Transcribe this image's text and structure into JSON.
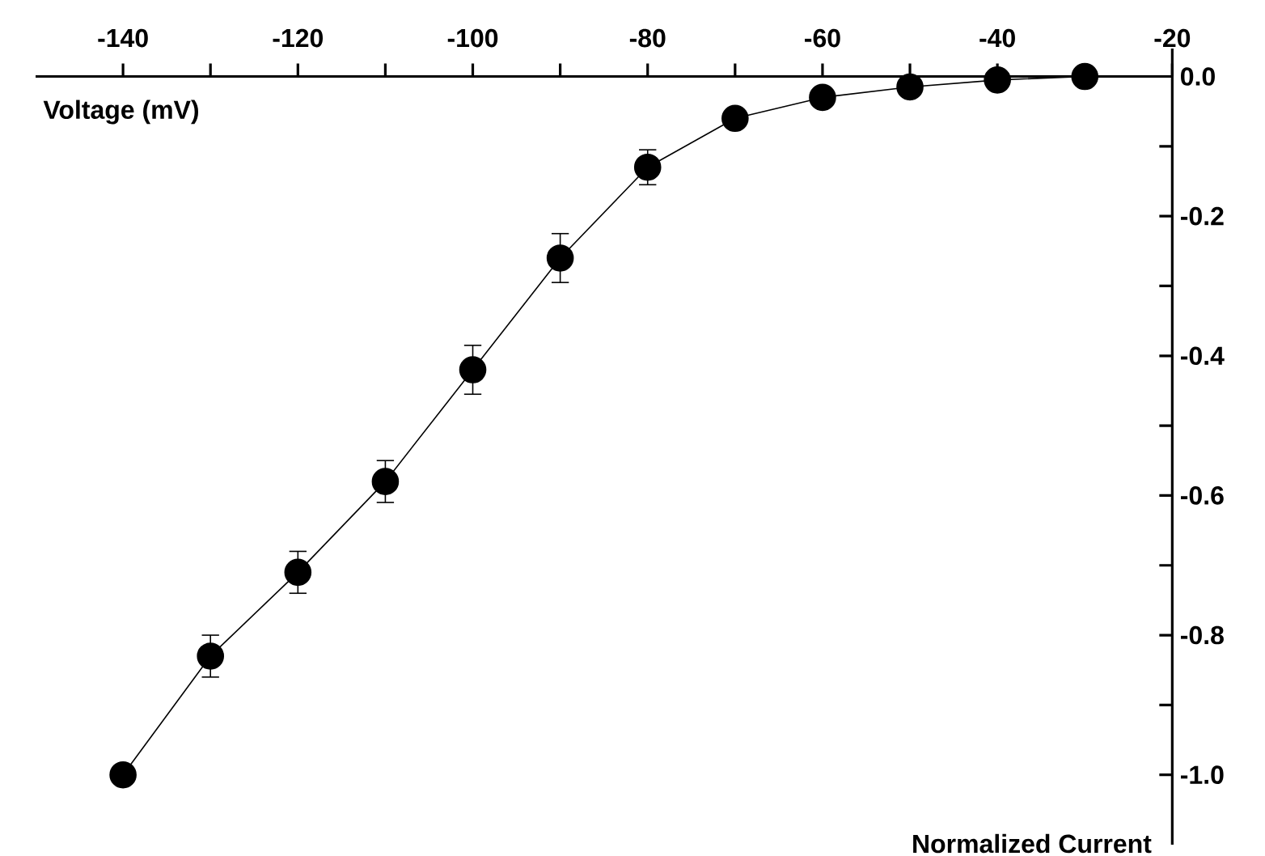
{
  "chart_data": {
    "type": "line",
    "xlabel": "Voltage (mV)",
    "ylabel": "Normalized Current",
    "x": [
      -140,
      -130,
      -120,
      -110,
      -100,
      -90,
      -80,
      -70,
      -60,
      -50,
      -40,
      -30
    ],
    "series": [
      {
        "color": "#000000",
        "values": [
          -1.0,
          -0.83,
          -0.71,
          -0.58,
          -0.42,
          -0.26,
          -0.13,
          -0.06,
          -0.03,
          -0.015,
          -0.005,
          0.0
        ],
        "errors": [
          null,
          0.03,
          0.03,
          0.03,
          0.035,
          0.035,
          0.025,
          null,
          null,
          null,
          null,
          null
        ]
      }
    ],
    "xlim": [
      -150,
      -20
    ],
    "ylim": [
      -1.1,
      0.04
    ],
    "xticks": [
      -140,
      {
        "value": -130,
        "label": null
      },
      -120,
      {
        "value": -110,
        "label": null
      },
      -100,
      {
        "value": -90,
        "label": null
      },
      -80,
      {
        "value": -70,
        "label": null
      },
      -60,
      {
        "value": -50,
        "label": null
      },
      -40,
      {
        "value": -30,
        "label": null
      },
      -20
    ],
    "yticks": [
      {
        "value": 0,
        "label": "0.0"
      },
      {
        "value": -0.1,
        "label": null
      },
      -0.2,
      {
        "value": -0.3,
        "label": null
      },
      -0.4,
      {
        "value": -0.5,
        "label": null
      },
      -0.6,
      {
        "value": -0.7,
        "label": null
      },
      -0.8,
      {
        "value": -0.9,
        "label": null
      },
      {
        "value": -1.0,
        "label": "-1.0"
      }
    ],
    "marker": "circle",
    "line_style": "solid"
  }
}
